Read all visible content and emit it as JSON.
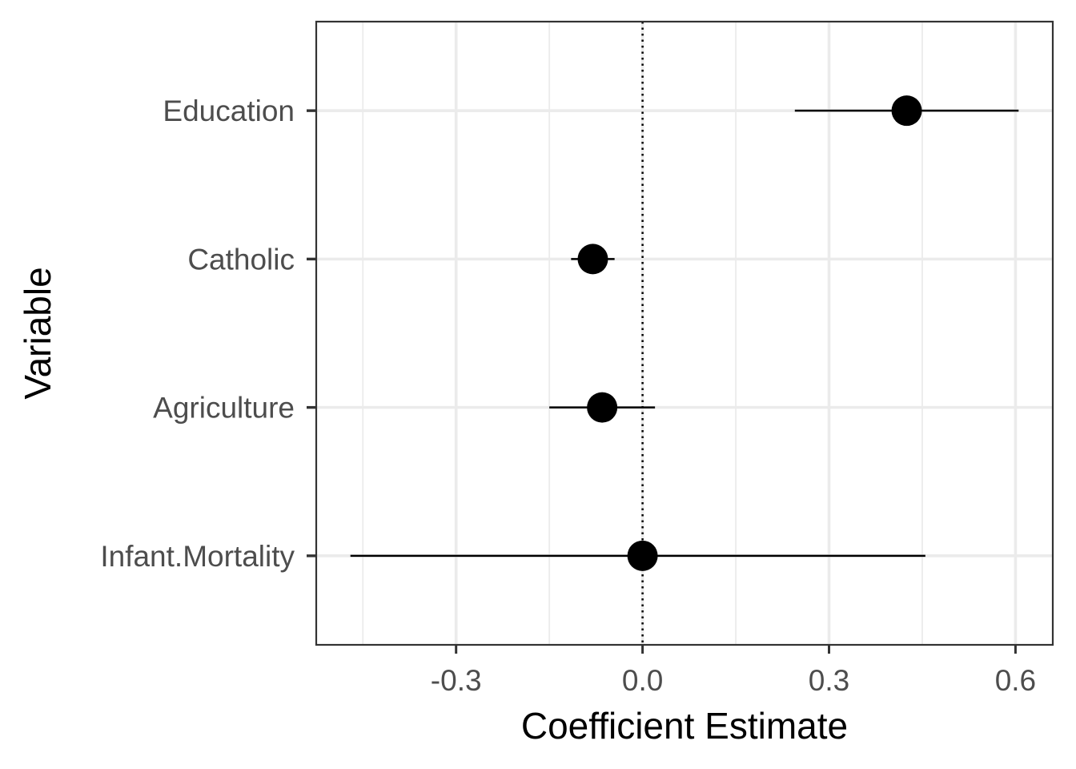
{
  "chart_data": {
    "type": "scatter",
    "subtype": "coefficient-plot",
    "title": "",
    "xlabel": "Coefficient Estimate",
    "ylabel": "Variable",
    "xlim": [
      -0.525,
      0.66
    ],
    "x_ticks": [
      "-0.3",
      "0.0",
      "0.3",
      "0.6"
    ],
    "grid": true,
    "reference_line": {
      "x": 0,
      "style": "dotted"
    },
    "categories": [
      "Education",
      "Catholic",
      "Agriculture",
      "Infant.Mortality"
    ],
    "series": [
      {
        "points": [
          {
            "variable": "Education",
            "estimate": 0.425,
            "low": 0.245,
            "high": 0.605
          },
          {
            "variable": "Catholic",
            "estimate": -0.08,
            "low": -0.115,
            "high": -0.045
          },
          {
            "variable": "Agriculture",
            "estimate": -0.065,
            "low": -0.15,
            "high": 0.02
          },
          {
            "variable": "Infant.Mortality",
            "estimate": 0.0,
            "low": -0.47,
            "high": 0.455
          }
        ]
      }
    ],
    "colors": {
      "point": "#000000",
      "errorbar": "#000000",
      "grid": "#ebebeb",
      "panel_border": "#333333",
      "tick_label": "#4d4d4d"
    }
  }
}
